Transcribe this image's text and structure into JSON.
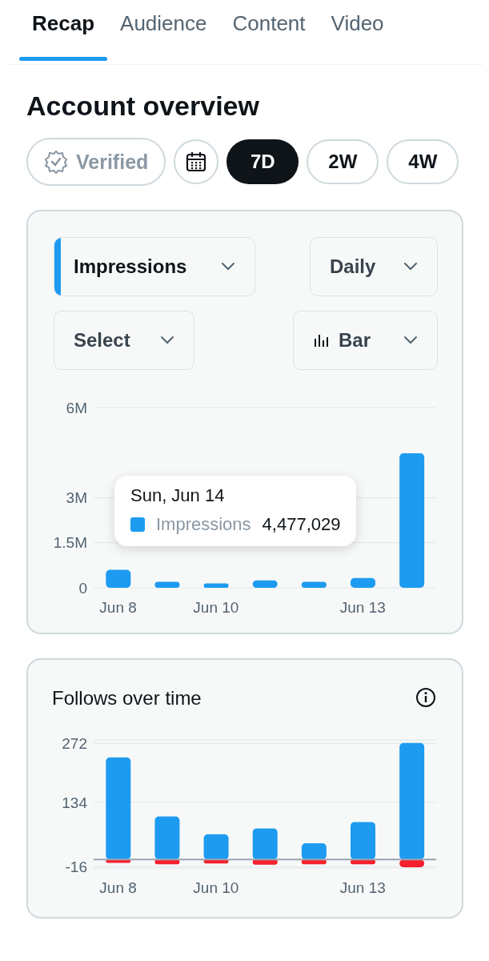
{
  "chart_data": [
    {
      "type": "other",
      "title": "Account overview",
      "annotations": [
        "Recap",
        "Audience",
        "Content",
        "Video",
        "Verified",
        "7D",
        "2W",
        "4W"
      ]
    },
    {
      "type": "bar",
      "categories": [
        "Jun 8",
        null,
        "Jun 10",
        null,
        null,
        "Jun 13",
        null
      ],
      "series": [
        {
          "color": "#1d9bf0",
          "values": [
            600000,
            200000,
            150000,
            250000,
            200000,
            330000,
            4477029
          ]
        }
      ],
      "ylim": [
        0,
        6000000
      ],
      "yticks": [
        0,
        {
          "value": 1500000,
          "label": "1.5M"
        },
        {
          "value": 3000000,
          "label": "3M"
        },
        {
          "value": 6000000,
          "label": "6M"
        }
      ],
      "grid": "y",
      "annotations": [
        "Impressions",
        "Daily",
        "Select",
        "Bar",
        "Sun, Jun 14",
        "Impressions",
        "4,477,029"
      ]
    },
    {
      "type": "bar",
      "title": "Follows over time",
      "categories": [
        "Jun 8",
        null,
        "Jun 10",
        null,
        null,
        "Jun 13",
        null
      ],
      "stacked": true,
      "series": [
        {
          "color": "#1d9bf0",
          "values": [
            239,
            101,
            59,
            73,
            38,
            88,
            273
          ]
        },
        {
          "color": "#f4212e",
          "values": [
            -8,
            -11,
            -9,
            -12,
            -11,
            -11,
            -18
          ]
        }
      ],
      "ylim": [
        -20,
        280
      ],
      "yticks": [
        -16,
        134,
        272
      ],
      "grid": "y",
      "ref_lines": [
        {
          "axis": "y",
          "value": 0,
          "color": "#9aa5b1"
        }
      ]
    }
  ]
}
